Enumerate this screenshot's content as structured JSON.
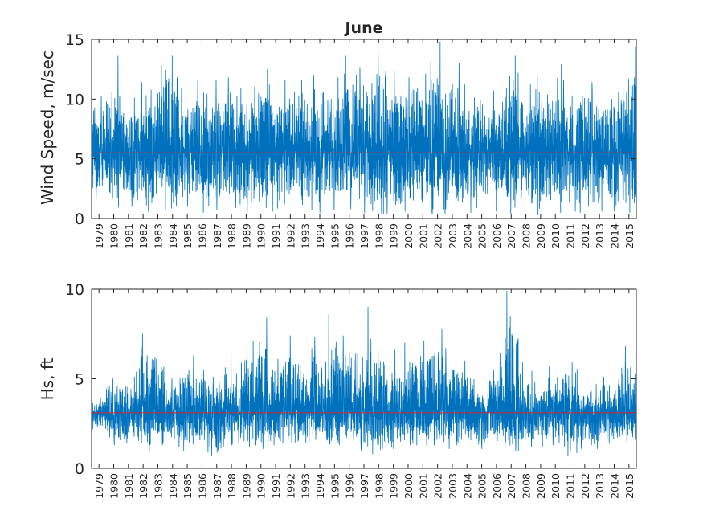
{
  "title": "June",
  "chart_data": [
    {
      "type": "line",
      "title": "June",
      "ylabel": "Wind Speed, m/sec",
      "xlabel": "",
      "ylim": [
        0,
        15
      ],
      "yticks": [
        0,
        5,
        10,
        15
      ],
      "xlim": [
        1978.6,
        2015.7
      ],
      "x_tick_labels": [
        "1979",
        "1980",
        "1981",
        "1982",
        "1983",
        "1984",
        "1985",
        "1986",
        "1987",
        "1988",
        "1989",
        "1990",
        "1991",
        "1992",
        "1993",
        "1994",
        "1995",
        "1996",
        "1997",
        "1998",
        "1999",
        "2000",
        "2001",
        "2002",
        "2003",
        "2004",
        "2005",
        "2006",
        "2007",
        "2008",
        "2009",
        "2010",
        "2011",
        "2012",
        "2013",
        "2014",
        "2015"
      ],
      "mean_line": 5.5,
      "series": [
        {
          "color": "#0072bd",
          "description": "hourly June wind speed, 1979-2015",
          "yearly_june_max": [
            10.2,
            13.6,
            10.1,
            11.4,
            12.8,
            13.6,
            10.9,
            11.6,
            11.6,
            11.8,
            10.9,
            12.5,
            11.2,
            11.6,
            11.6,
            12.0,
            11.8,
            13.6,
            12.6,
            14.5,
            12.4,
            11.8,
            12.1,
            14.8,
            13.0,
            11.2,
            11.4,
            10.7,
            13.6,
            11.2,
            12.0,
            12.9,
            11.6,
            11.4,
            10.6,
            10.6,
            14.4
          ],
          "yearly_june_min": [
            1.5,
            0.8,
            1.0,
            0.6,
            1.3,
            0.4,
            1.0,
            0.5,
            0.7,
            0.9,
            0.5,
            0.9,
            0.6,
            1.2,
            0.7,
            0.5,
            0.7,
            0.8,
            0.5,
            0.4,
            0.4,
            0.6,
            1.2,
            0.4,
            0.4,
            0.5,
            0.9,
            0.6,
            0.4,
            0.5,
            0.3,
            0.5,
            0.6,
            0.5,
            0.6,
            0.6,
            0.5
          ]
        },
        {
          "color": "#d62728",
          "description": "mean",
          "values": [
            5.5,
            5.5
          ]
        }
      ]
    },
    {
      "type": "line",
      "title": "",
      "ylabel": "Hs, ft",
      "xlabel": "",
      "ylim": [
        0,
        10
      ],
      "yticks": [
        0,
        5,
        10
      ],
      "xlim": [
        1978.6,
        2015.7
      ],
      "x_tick_labels": [
        "1979",
        "1980",
        "1981",
        "1982",
        "1983",
        "1984",
        "1985",
        "1986",
        "1987",
        "1988",
        "1989",
        "1990",
        "1991",
        "1992",
        "1993",
        "1994",
        "1995",
        "1996",
        "1997",
        "1998",
        "1999",
        "2000",
        "2001",
        "2002",
        "2003",
        "2004",
        "2005",
        "2006",
        "2007",
        "2008",
        "2009",
        "2010",
        "2011",
        "2012",
        "2013",
        "2014",
        "2015"
      ],
      "mean_line": 3.1,
      "series": [
        {
          "color": "#0072bd",
          "description": "hourly June significant wave height, 1979-2015",
          "yearly_june_max": [
            3.9,
            5.0,
            5.1,
            7.5,
            7.3,
            5.0,
            6.3,
            5.5,
            5.1,
            6.4,
            7.1,
            8.4,
            6.1,
            7.4,
            6.7,
            7.3,
            8.6,
            7.4,
            9.0,
            7.1,
            6.6,
            7.0,
            7.1,
            7.8,
            6.7,
            6.0,
            4.4,
            6.4,
            9.9,
            5.9,
            4.8,
            5.7,
            5.9,
            4.6,
            5.1,
            5.0,
            6.8
          ],
          "yearly_june_min": [
            1.9,
            1.3,
            1.4,
            1.0,
            1.3,
            1.2,
            1.0,
            0.9,
            0.7,
            1.3,
            1.2,
            1.1,
            1.3,
            1.4,
            1.4,
            1.6,
            1.3,
            1.5,
            1.0,
            0.8,
            1.1,
            1.3,
            1.3,
            1.3,
            1.1,
            1.2,
            1.1,
            1.3,
            1.0,
            1.2,
            1.2,
            1.3,
            0.7,
            1.1,
            1.1,
            1.2,
            1.4
          ]
        },
        {
          "color": "#d62728",
          "description": "mean",
          "values": [
            3.1,
            3.1
          ]
        }
      ]
    }
  ]
}
